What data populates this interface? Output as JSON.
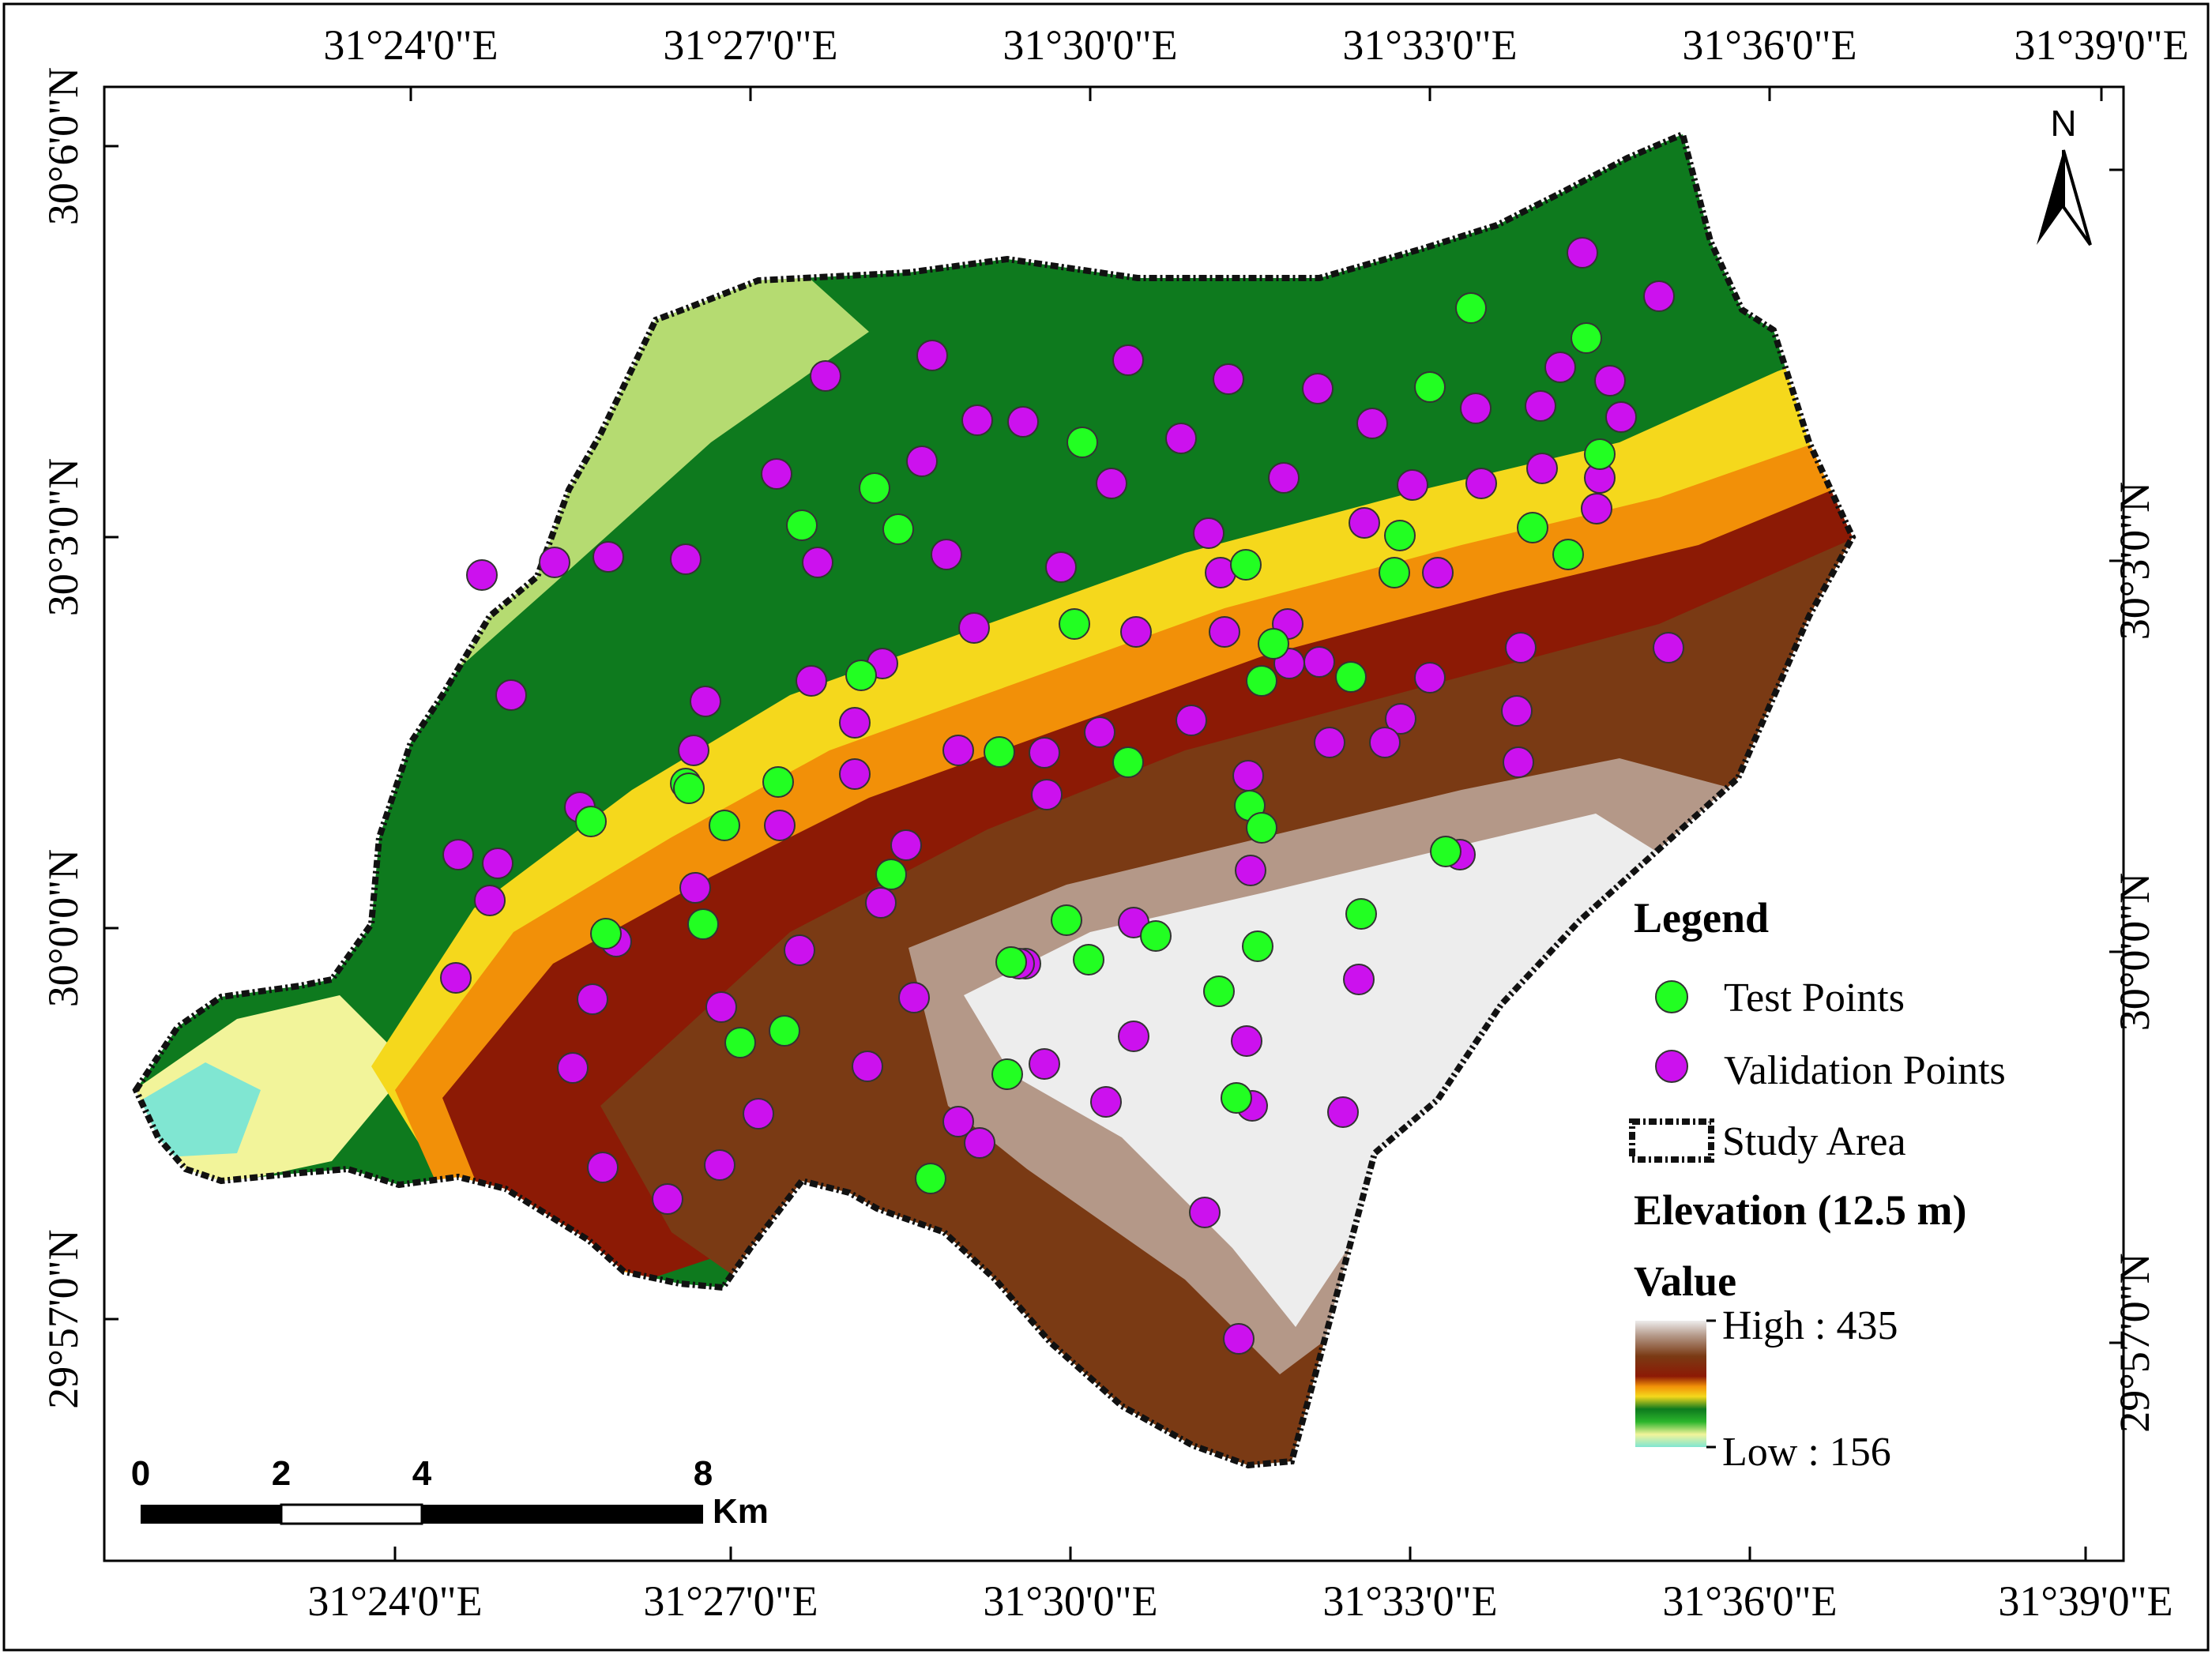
{
  "top_labels": [
    "31°24'0\"E",
    "31°27'0\"E",
    "31°30'0\"E",
    "31°33'0\"E",
    "31°36'0\"E",
    "31°39'0\"E"
  ],
  "bottom_labels": [
    "31°24'0\"E",
    "31°27'0\"E",
    "31°30'0\"E",
    "31°33'0\"E",
    "31°36'0\"E",
    "31°39'0\"E"
  ],
  "left_labels": [
    "30°6'0\"N",
    "30°3'0\"N",
    "30°0'0\"N",
    "29°57'0\"N"
  ],
  "right_labels": [
    "30°3'0\"N",
    "30°0'0\"N",
    "29°57'0\"N"
  ],
  "north_arrow": {
    "label": "N",
    "icon": "north-arrow-icon"
  },
  "legend": {
    "title": "Legend",
    "test_points": "Test Points",
    "validation_points": "Validation Points",
    "study_area": "Study Area",
    "elevation_title": "Elevation (12.5 m)",
    "value_title": "Value",
    "high_label": "High : 435",
    "low_label": "Low : 156"
  },
  "scale_bar": {
    "ticks": [
      "0",
      "2",
      "4",
      "8"
    ],
    "unit": "Km"
  },
  "colors": {
    "test_point": "#22ff22",
    "validation_point": "#cc11ee",
    "point_outline": "#333333",
    "boundary": "#111111",
    "elevation_ramp": [
      "#80e6d2",
      "#f2f49a",
      "#2bb52b",
      "#0e7a1e",
      "#f5d81c",
      "#f29008",
      "#8c1a05",
      "#7a3a14",
      "#b49888",
      "#ededed"
    ]
  }
}
